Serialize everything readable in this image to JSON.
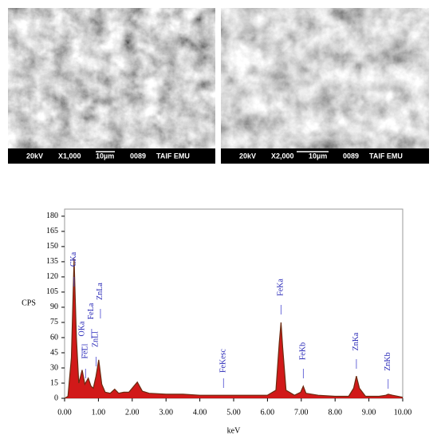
{
  "images": [
    {
      "captions": [
        "20kV",
        "X1,000",
        "10µm",
        "0089",
        "TAIF EMU"
      ]
    },
    {
      "captions": [
        "20kV",
        "X2,000",
        "10µm",
        "0089",
        "TAIF EMU"
      ]
    }
  ],
  "chart_data": {
    "type": "area",
    "x_label": "keV",
    "y_label": "CPS",
    "color": "#cc0000",
    "line_color": "#6b2a10",
    "xlim": [
      0,
      10
    ],
    "ylim": [
      0,
      187
    ],
    "xticks": [
      {
        "value": 0,
        "label": "0.00"
      },
      {
        "value": 1,
        "label": "1.00"
      },
      {
        "value": 2,
        "label": "2.00"
      },
      {
        "value": 3,
        "label": "3.00"
      },
      {
        "value": 4,
        "label": "4.00"
      },
      {
        "value": 5,
        "label": "5.00"
      },
      {
        "value": 6,
        "label": "6.00"
      },
      {
        "value": 7,
        "label": "7.00"
      },
      {
        "value": 8,
        "label": "8.00"
      },
      {
        "value": 9,
        "label": "9.00"
      },
      {
        "value": 10,
        "label": "10.00"
      }
    ],
    "yticks": [
      0,
      15,
      30,
      45,
      60,
      75,
      90,
      105,
      120,
      135,
      150,
      165,
      180
    ],
    "x": [
      0.0,
      0.1,
      0.2,
      0.28,
      0.35,
      0.42,
      0.52,
      0.6,
      0.7,
      0.78,
      0.85,
      0.93,
      1.01,
      1.1,
      1.2,
      1.35,
      1.48,
      1.6,
      1.75,
      1.9,
      2.05,
      2.15,
      2.3,
      2.5,
      3.0,
      3.5,
      4.0,
      4.5,
      5.0,
      5.5,
      6.0,
      6.25,
      6.35,
      6.4,
      6.45,
      6.55,
      6.8,
      6.98,
      7.06,
      7.14,
      7.5,
      8.0,
      8.4,
      8.55,
      8.63,
      8.72,
      8.9,
      9.3,
      9.5,
      9.57,
      9.7,
      10.0
    ],
    "values": [
      0,
      2,
      40,
      138,
      60,
      15,
      28,
      14,
      20,
      12,
      10,
      22,
      38,
      14,
      6,
      5,
      9,
      5,
      6,
      6,
      12,
      16,
      7,
      5,
      4,
      4,
      3,
      3,
      3,
      3,
      3,
      8,
      55,
      75,
      50,
      8,
      3,
      6,
      12,
      5,
      3,
      2,
      2,
      10,
      22,
      10,
      2,
      2,
      3,
      4,
      3,
      1
    ],
    "annotations": [
      {
        "text": "CKa",
        "x": 0.28
      },
      {
        "text": "OKa",
        "x": 0.52
      },
      {
        "text": "FeLl",
        "x": 0.62
      },
      {
        "text": "FeLa",
        "x": 0.8
      },
      {
        "text": "ZnLl",
        "x": 0.93
      },
      {
        "text": "ZnLa",
        "x": 1.06
      },
      {
        "text": "FeKesc",
        "x": 4.7
      },
      {
        "text": "FeKa",
        "x": 6.4
      },
      {
        "text": "FeKb",
        "x": 7.06
      },
      {
        "text": "ZnKa",
        "x": 8.63
      },
      {
        "text": "ZnKb",
        "x": 9.57
      }
    ]
  }
}
